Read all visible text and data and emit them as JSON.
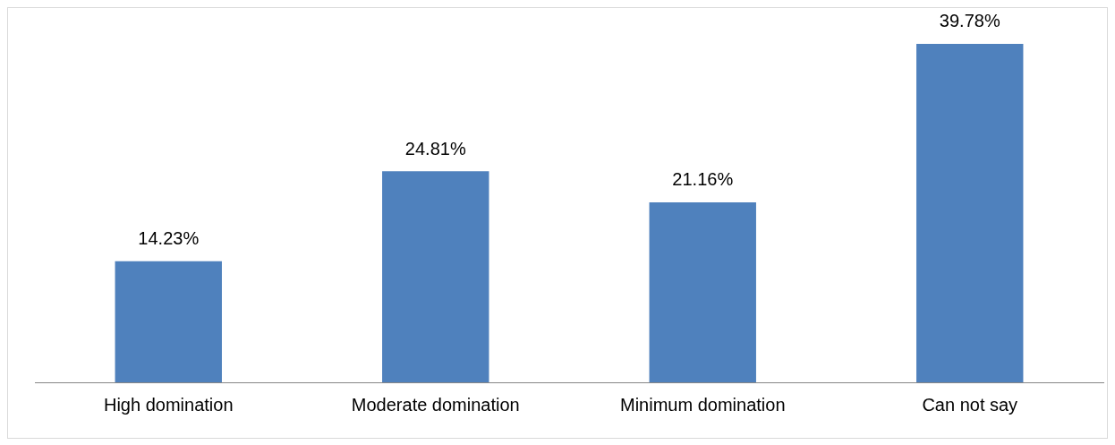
{
  "chart_data": {
    "type": "bar",
    "categories": [
      "High domination",
      "Moderate domination",
      "Minimum domination",
      "Can not say"
    ],
    "values": [
      14.23,
      24.81,
      21.16,
      39.78
    ],
    "value_labels": [
      "14.23%",
      "24.81%",
      "21.16%",
      "39.78%"
    ],
    "color": "#4f81bd",
    "grid": false,
    "legend": false
  }
}
